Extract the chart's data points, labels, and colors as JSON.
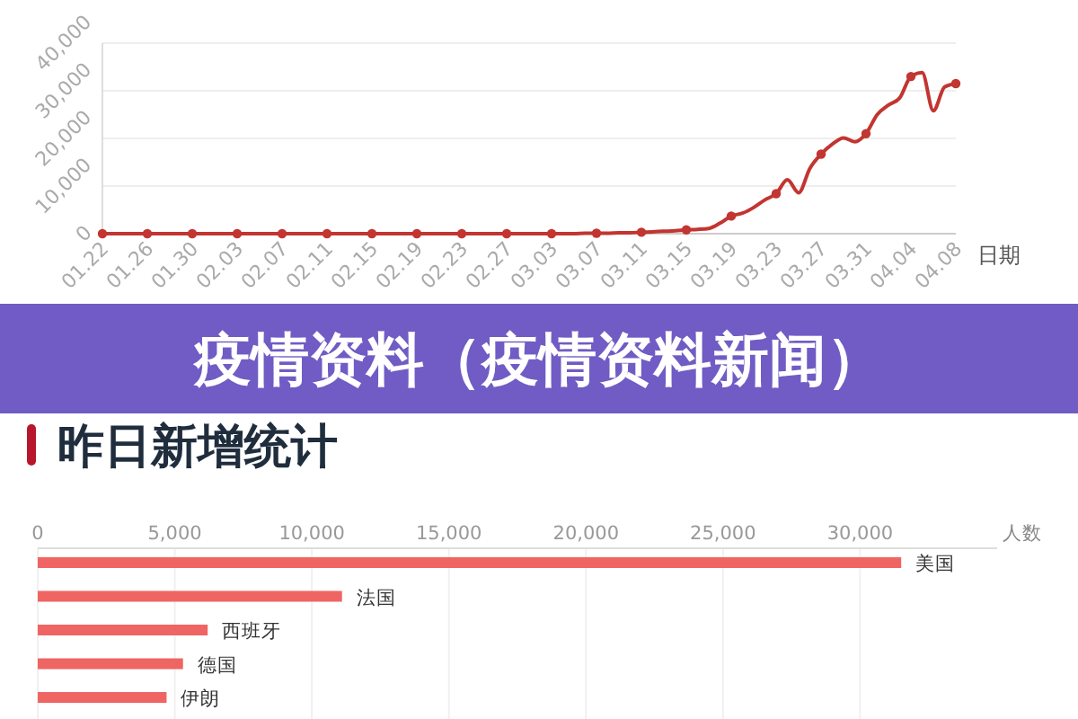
{
  "chart_data": [
    {
      "type": "line",
      "xlabel": "日期",
      "categories": [
        "01.22",
        null,
        null,
        null,
        "01.26",
        null,
        null,
        null,
        "01.30",
        null,
        null,
        null,
        "02.03",
        null,
        null,
        null,
        "02.07",
        null,
        null,
        null,
        "02.11",
        null,
        null,
        null,
        "02.15",
        null,
        null,
        null,
        "02.19",
        null,
        null,
        null,
        "02.23",
        null,
        null,
        null,
        "02.27",
        null,
        null,
        null,
        "03.03",
        null,
        null,
        null,
        "03.07",
        null,
        null,
        null,
        "03.11",
        null,
        null,
        null,
        "03.15",
        null,
        null,
        null,
        "03.19",
        null,
        null,
        null,
        "03.23",
        null,
        null,
        null,
        "03.27",
        null,
        null,
        null,
        "03.31",
        null,
        null,
        null,
        "04.04",
        null,
        null,
        null,
        "04.08"
      ],
      "series": [
        {
          "color": "#c23531",
          "values": [
            0,
            0,
            0,
            0,
            0,
            0,
            0,
            0,
            0,
            0,
            0,
            0,
            0,
            0,
            0,
            0,
            0,
            0,
            0,
            0,
            0,
            0,
            0,
            0,
            0,
            0,
            0,
            0,
            0,
            0,
            0,
            0,
            0,
            0,
            0,
            0,
            0,
            0,
            0,
            0,
            0,
            0,
            0,
            100,
            100,
            100,
            200,
            200,
            300,
            400,
            500,
            600,
            800,
            900,
            1100,
            2200,
            3700,
            4300,
            5500,
            7100,
            8400,
            11300,
            8600,
            13700,
            16700,
            18800,
            20100,
            19300,
            21000,
            25000,
            27000,
            28500,
            33000,
            33800,
            25800,
            30800,
            31500
          ]
        },
        {
          "type": "scatter",
          "color": "#c23531",
          "x": [
            "01.22",
            "01.26",
            "01.30",
            "02.03",
            "02.07",
            "02.11",
            "02.15",
            "02.19",
            "02.23",
            "02.27",
            "03.03",
            "03.07",
            "03.11",
            "03.15",
            "03.19",
            "03.23",
            "03.27",
            "03.31",
            "04.04",
            "04.08"
          ],
          "values": [
            0,
            0,
            0,
            0,
            0,
            0,
            0,
            0,
            0,
            0,
            0,
            100,
            300,
            800,
            3700,
            8400,
            16700,
            21000,
            33000,
            31500
          ]
        }
      ],
      "ylim": [
        0,
        40000
      ],
      "yticks": [
        0,
        {
          "value": 10000,
          "label": "10,000"
        },
        {
          "value": 20000,
          "label": "20,000"
        },
        {
          "value": 30000,
          "label": "30,000"
        },
        {
          "value": 40000,
          "label": "40,000"
        }
      ],
      "grid": "y"
    },
    {
      "type": "bar",
      "orientation": "horizontal",
      "title": "疫情资料（疫情资料新闻）",
      "subtitle": "昨日新增统计",
      "xlabel": "人数",
      "categories": [
        "美国",
        "法国",
        "西班牙",
        "德国",
        "伊朗"
      ],
      "values": [
        31500,
        11100,
        6200,
        5300,
        4700
      ],
      "color": "#ef6563",
      "xlim": [
        0,
        35000
      ],
      "xticks": [
        0,
        {
          "value": 5000,
          "label": "5,000"
        },
        {
          "value": 10000,
          "label": "10,000"
        },
        {
          "value": 15000,
          "label": "15,000"
        },
        {
          "value": 20000,
          "label": "20,000"
        },
        {
          "value": 25000,
          "label": "25,000"
        },
        {
          "value": 30000,
          "label": "30,000"
        }
      ],
      "grid": "x"
    }
  ]
}
